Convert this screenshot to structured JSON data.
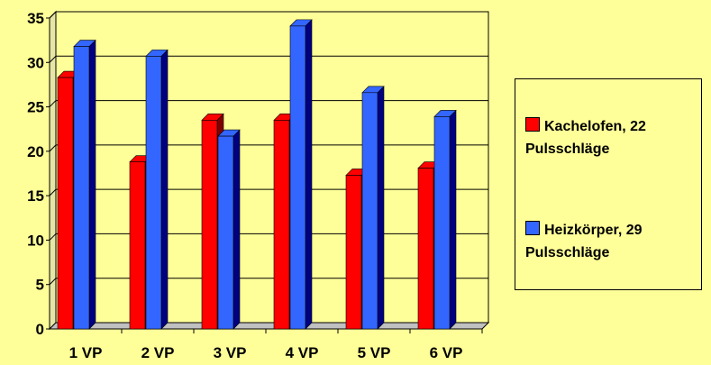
{
  "chart_data": {
    "type": "bar",
    "categories": [
      "1 VP",
      "2 VP",
      "3 VP",
      "4 VP",
      "5 VP",
      "6 VP"
    ],
    "series": [
      {
        "name": "Kachelofen, 22 Pulsschläge",
        "values": [
          28.3,
          18.8,
          23.5,
          23.5,
          17.3,
          18.1
        ],
        "color": "#ff0000",
        "side_color": "#800000"
      },
      {
        "name": "Heizkörper, 29 Pulsschläge",
        "values": [
          31.8,
          30.7,
          21.7,
          34.1,
          26.6,
          23.9
        ],
        "color": "#3366ff",
        "side_color": "#000080"
      }
    ],
    "yticks": [
      "0",
      "5",
      "10",
      "15",
      "20",
      "25",
      "30",
      "35"
    ],
    "ylim": [
      0,
      35
    ],
    "grid": true,
    "legend_position": "right",
    "background": "#ffff99"
  }
}
